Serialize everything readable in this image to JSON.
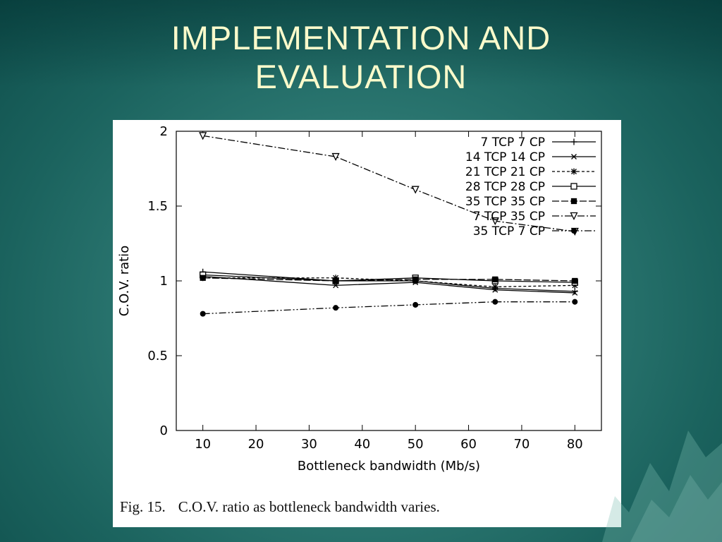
{
  "slide": {
    "title_line1": "IMPLEMENTATION AND",
    "title_line2": "EVALUATION"
  },
  "figure": {
    "caption_label": "Fig. 15.",
    "caption_text": "C.O.V. ratio as bottleneck bandwidth varies."
  },
  "colors": {
    "slide_background": "#2e7a74",
    "title_text": "#fbfacb",
    "figure_background": "#ffffff",
    "plot_ink": "#000000"
  },
  "chart_data": {
    "type": "line",
    "title": "",
    "xlabel": "Bottleneck bandwidth (Mb/s)",
    "ylabel": "C.O.V. ratio",
    "xlim": [
      5,
      85
    ],
    "ylim": [
      0,
      2
    ],
    "xticks": [
      10,
      20,
      30,
      40,
      50,
      60,
      70,
      80
    ],
    "yticks": [
      0,
      0.5,
      1,
      1.5,
      2
    ],
    "x": [
      10,
      35,
      50,
      65,
      80
    ],
    "grid": false,
    "legend_position": "top-right",
    "series": [
      {
        "name": "7 TCP 7 CP",
        "marker": "plus",
        "dash": "solid",
        "values": [
          1.06,
          1.0,
          1.0,
          0.95,
          0.93
        ]
      },
      {
        "name": "14 TCP 14 CP",
        "marker": "cross",
        "dash": "solid",
        "values": [
          1.03,
          0.97,
          0.99,
          0.94,
          0.92
        ]
      },
      {
        "name": "21 TCP 21 CP",
        "marker": "asterisk",
        "dash": "dashed",
        "values": [
          1.02,
          1.02,
          1.0,
          0.96,
          0.97
        ]
      },
      {
        "name": "28 TCP 28 CP",
        "marker": "square-open",
        "dash": "solid",
        "values": [
          1.04,
          1.0,
          1.02,
          1.0,
          0.99
        ]
      },
      {
        "name": "35 TCP 35 CP",
        "marker": "square-filled",
        "dash": "dash",
        "values": [
          1.02,
          1.0,
          1.01,
          1.01,
          1.0
        ]
      },
      {
        "name": "7 TCP 35 CP",
        "marker": "triangle-down-open",
        "dash": "dashdot",
        "values": [
          1.97,
          1.83,
          1.61,
          1.4,
          1.33
        ]
      },
      {
        "name": "35 TCP 7 CP",
        "marker": "circle-filled",
        "dash": "dashdotdot",
        "values": [
          0.78,
          0.82,
          0.84,
          0.86,
          0.86
        ]
      }
    ]
  }
}
